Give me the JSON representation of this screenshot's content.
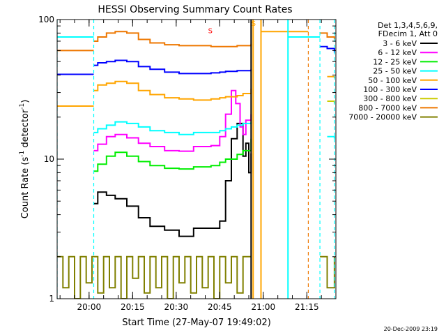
{
  "chart_data": {
    "type": "line",
    "title": "HESSI Observing Summary Count Rates",
    "xlabel": "Start Time (27-May-07 19:49:02)",
    "ylabel_main": "Count Rate (s",
    "ylabel_sup1": "-1",
    "ylabel_mid": " detector",
    "ylabel_sup2": "-1",
    "ylabel_end": ")",
    "y_log": true,
    "xlim_min": [
      0,
      96
    ],
    "ylim": [
      1,
      100
    ],
    "x_ticks": [
      {
        "min": 11,
        "label": "20:00"
      },
      {
        "min": 26,
        "label": "20:15"
      },
      {
        "min": 41,
        "label": "20:30"
      },
      {
        "min": 56,
        "label": "20:45"
      },
      {
        "min": 71,
        "label": "21:00"
      },
      {
        "min": 86,
        "label": "21:15"
      }
    ],
    "y_ticks": [
      {
        "value": 1,
        "label": "1"
      },
      {
        "value": 10,
        "label": "10"
      },
      {
        "value": 100,
        "label": "100"
      }
    ],
    "legend_header": [
      "Det 1,3,4,5,6,9,",
      "FDecim 1, Att 0"
    ],
    "legend_placement": "right",
    "series": [
      {
        "name": "3 - 6 keV",
        "color": "#000000",
        "segments": [
          [
            [
              12.6,
              4.8
            ],
            [
              14,
              5.8
            ],
            [
              17,
              5.5
            ],
            [
              20,
              5.2
            ],
            [
              24,
              4.6
            ],
            [
              28,
              3.8
            ],
            [
              32,
              3.3
            ],
            [
              37,
              3.1
            ],
            [
              42,
              2.8
            ],
            [
              47,
              3.2
            ],
            [
              53,
              3.2
            ],
            [
              56,
              3.6
            ],
            [
              58,
              7.0
            ],
            [
              60,
              14.0
            ],
            [
              62,
              18.0
            ],
            [
              64,
              10.5
            ],
            [
              65,
              13.0
            ],
            [
              66,
              8.0
            ],
            [
              66.8,
              11.0
            ]
          ]
        ]
      },
      {
        "name": "6 - 12 keV",
        "color": "#ff00ff",
        "segments": [
          [
            [
              12.6,
              11.5
            ],
            [
              14,
              12.8
            ],
            [
              17,
              14.5
            ],
            [
              20,
              15.0
            ],
            [
              24,
              14.2
            ],
            [
              28,
              13.0
            ],
            [
              32,
              12.3
            ],
            [
              37,
              11.5
            ],
            [
              42,
              11.4
            ],
            [
              47,
              12.3
            ],
            [
              53,
              12.5
            ],
            [
              56,
              14.5
            ],
            [
              58,
              21.0
            ],
            [
              60,
              31.0
            ],
            [
              61.5,
              25.0
            ],
            [
              63,
              17.0
            ],
            [
              64,
              15.0
            ],
            [
              65,
              19.0
            ],
            [
              66.8,
              21.0
            ]
          ]
        ]
      },
      {
        "name": "12 - 25 keV",
        "color": "#00ee00",
        "segments": [
          [
            [
              12.6,
              8.2
            ],
            [
              14,
              9.2
            ],
            [
              17,
              10.5
            ],
            [
              20,
              11.2
            ],
            [
              24,
              10.5
            ],
            [
              28,
              9.6
            ],
            [
              32,
              9.0
            ],
            [
              37,
              8.6
            ],
            [
              42,
              8.5
            ],
            [
              47,
              8.8
            ],
            [
              53,
              9.0
            ],
            [
              56,
              9.5
            ],
            [
              58,
              10.0
            ],
            [
              60,
              10.0
            ],
            [
              62,
              10.8
            ],
            [
              64,
              11.5
            ],
            [
              66.8,
              14.0
            ]
          ]
        ]
      },
      {
        "name": "25 - 50 keV",
        "color": "#00ffff",
        "segments": [
          [
            [
              0,
              75.0
            ],
            [
              12.6,
              75.0
            ]
          ],
          [
            [
              12.6,
              15.5
            ],
            [
              14,
              16.5
            ],
            [
              17,
              17.5
            ],
            [
              20,
              18.5
            ],
            [
              24,
              18.0
            ],
            [
              28,
              17.0
            ],
            [
              32,
              16.0
            ],
            [
              37,
              15.5
            ],
            [
              42,
              15.0
            ],
            [
              47,
              15.5
            ],
            [
              53,
              15.5
            ],
            [
              56,
              16.0
            ],
            [
              58,
              16.5
            ],
            [
              60,
              17.0
            ],
            [
              62,
              17.5
            ],
            [
              64,
              18.0
            ],
            [
              66.8,
              18.5
            ]
          ],
          [
            [
              79.5,
              75.0
            ],
            [
              90.5,
              75.0
            ]
          ],
          [
            [
              93,
              14.5
            ],
            [
              95.5,
              14.0
            ]
          ]
        ]
      },
      {
        "name": "50 - 100 keV",
        "color": "#ffa500",
        "segments": [
          [
            [
              0,
              24.0
            ],
            [
              12.6,
              24.0
            ]
          ],
          [
            [
              12.6,
              31.0
            ],
            [
              14,
              34.0
            ],
            [
              17,
              35.0
            ],
            [
              20,
              36.0
            ],
            [
              24,
              35.0
            ],
            [
              28,
              31.0
            ],
            [
              32,
              29.0
            ],
            [
              37,
              27.5
            ],
            [
              42,
              27.0
            ],
            [
              47,
              26.5
            ],
            [
              53,
              27.0
            ],
            [
              56,
              27.5
            ],
            [
              58,
              28.0
            ],
            [
              62,
              28.5
            ],
            [
              64,
              29.5
            ],
            [
              66.8,
              32.0
            ]
          ],
          [
            [
              70.2,
              82.0
            ],
            [
              86.5,
              82.0
            ]
          ],
          [
            [
              93,
              39.0
            ],
            [
              95.5,
              38.0
            ]
          ]
        ]
      },
      {
        "name": "100 - 300 keV",
        "color": "#0000ff",
        "segments": [
          [
            [
              0,
              40.5
            ],
            [
              12.6,
              40.5
            ]
          ],
          [
            [
              12.6,
              47.0
            ],
            [
              14,
              49.0
            ],
            [
              17,
              50.0
            ],
            [
              20,
              51.0
            ],
            [
              24,
              50.0
            ],
            [
              28,
              46.0
            ],
            [
              32,
              44.0
            ],
            [
              37,
              42.0
            ],
            [
              42,
              41.0
            ],
            [
              47,
              41.0
            ],
            [
              53,
              41.5
            ],
            [
              56,
              42.0
            ],
            [
              58,
              42.5
            ],
            [
              62,
              43.0
            ],
            [
              64,
              43.0
            ],
            [
              66.8,
              44.0
            ]
          ],
          [
            [
              90.5,
              64.0
            ],
            [
              93,
              62.0
            ],
            [
              95.5,
              58.0
            ]
          ]
        ]
      },
      {
        "name": "300 - 800 keV",
        "color": "#cccc00",
        "segments": [
          [
            [
              93,
              26.0
            ],
            [
              95.5,
              25.0
            ]
          ]
        ]
      },
      {
        "name": "800 - 7000 keV",
        "color": "#ee7700",
        "segments": [
          [
            [
              0,
              60.0
            ],
            [
              12.6,
              60.0
            ]
          ],
          [
            [
              12.6,
              70.0
            ],
            [
              14,
              75.0
            ],
            [
              17,
              80.0
            ],
            [
              20,
              82.0
            ],
            [
              24,
              80.0
            ],
            [
              28,
              72.0
            ],
            [
              32,
              68.0
            ],
            [
              37,
              66.0
            ],
            [
              42,
              65.0
            ],
            [
              47,
              65.0
            ],
            [
              53,
              64.0
            ],
            [
              56,
              64.0
            ],
            [
              58,
              64.0
            ],
            [
              62,
              65.0
            ],
            [
              64,
              65.0
            ],
            [
              66.8,
              67.0
            ]
          ],
          [
            [
              90.5,
              80.0
            ],
            [
              93,
              75.0
            ],
            [
              95.5,
              72.0
            ]
          ]
        ]
      },
      {
        "name": "7000 - 20000 keV",
        "color": "#808000",
        "segments": [
          [
            [
              0,
              2.0
            ],
            [
              2,
              1.2
            ],
            [
              4,
              2.0
            ],
            [
              6,
              1.0
            ],
            [
              8,
              2.0
            ],
            [
              10,
              1.3
            ],
            [
              12,
              2.0
            ],
            [
              14,
              1.1
            ],
            [
              16,
              2.0
            ],
            [
              18,
              1.2
            ],
            [
              20,
              2.0
            ],
            [
              22,
              1.0
            ],
            [
              24,
              2.0
            ],
            [
              26,
              1.4
            ],
            [
              28,
              2.0
            ],
            [
              30,
              1.1
            ],
            [
              32,
              2.0
            ],
            [
              34,
              1.2
            ],
            [
              36,
              2.0
            ],
            [
              38,
              1.0
            ],
            [
              40,
              2.0
            ],
            [
              42,
              1.3
            ],
            [
              44,
              2.0
            ],
            [
              46,
              1.1
            ],
            [
              48,
              2.0
            ],
            [
              50,
              1.2
            ],
            [
              52,
              2.0
            ],
            [
              54,
              1.0
            ],
            [
              56,
              2.0
            ],
            [
              58,
              1.3
            ],
            [
              60,
              2.0
            ],
            [
              62,
              1.1
            ],
            [
              64,
              2.0
            ],
            [
              66.8,
              2.0
            ]
          ],
          [
            [
              90.5,
              2.0
            ],
            [
              93,
              1.2
            ],
            [
              95.5,
              2.0
            ]
          ]
        ]
      }
    ],
    "solid_vlines": [
      {
        "min": 66.8,
        "color": "#000000"
      },
      {
        "min": 67.5,
        "color": "#ffa500"
      },
      {
        "min": 70.2,
        "color": "#ffa500"
      },
      {
        "min": 79.5,
        "color": "#00ffff"
      }
    ],
    "dashed_vlines": [
      {
        "min": 0,
        "color": "#00ffff"
      },
      {
        "min": 12.6,
        "color": "#00ffff"
      },
      {
        "min": 86.5,
        "color": "#ee7700"
      },
      {
        "min": 90.5,
        "color": "#00ffff"
      },
      {
        "min": 95.5,
        "color": "#00ffff"
      }
    ],
    "annotations": [
      {
        "text": "S",
        "min": 52.0,
        "value": 80.0,
        "color": "#ff0000"
      },
      {
        "text": "S",
        "min": 66.9,
        "value": 90.0,
        "color": "#ffa500"
      }
    ],
    "timestamp": "20-Dec-2009 23:19"
  }
}
